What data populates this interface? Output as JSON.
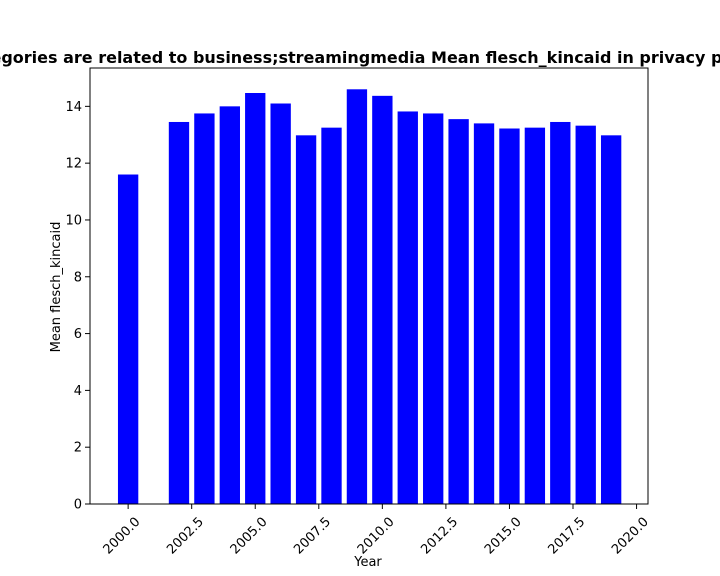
{
  "chart_data": {
    "type": "bar",
    "title": "Categories are related to business;streamingmedia Mean flesch_kincaid in privacy policies",
    "xlabel": "Year",
    "ylabel": "Mean flesch_kincaid",
    "x": [
      2000,
      2002,
      2003,
      2004,
      2005,
      2006,
      2007,
      2008,
      2009,
      2010,
      2011,
      2012,
      2013,
      2014,
      2015,
      2016,
      2017,
      2018,
      2019
    ],
    "values": [
      11.6,
      13.45,
      13.75,
      14.0,
      14.47,
      14.1,
      12.98,
      13.25,
      14.6,
      14.37,
      13.82,
      13.75,
      13.55,
      13.4,
      13.22,
      13.25,
      13.45,
      13.32,
      12.98
    ],
    "xlim": [
      1998.5,
      2020.45
    ],
    "ylim": [
      0,
      15.35
    ],
    "xticks": [
      "2000.0",
      "2002.5",
      "2005.0",
      "2007.5",
      "2010.0",
      "2012.5",
      "2015.0",
      "2017.5",
      "2020.0"
    ],
    "yticks": [
      "0",
      "2",
      "4",
      "6",
      "8",
      "10",
      "12",
      "14"
    ],
    "bar_color": "#0000ff",
    "grid": false,
    "legend": "none"
  }
}
